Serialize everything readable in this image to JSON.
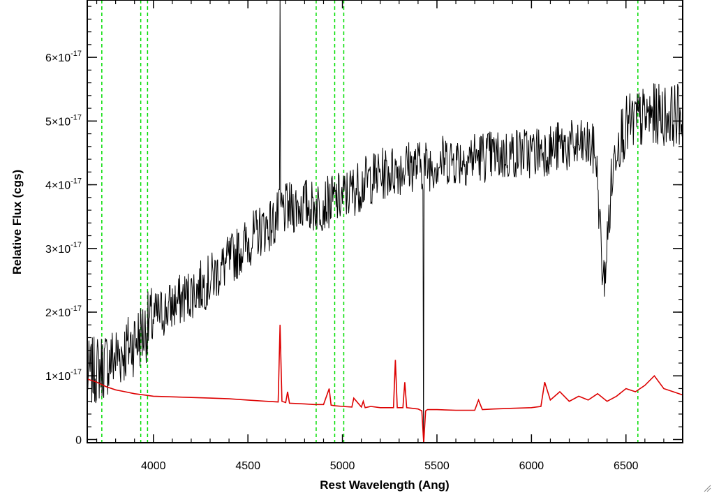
{
  "chart_data": {
    "type": "line",
    "title": "",
    "xlabel": "Rest Wavelength (Ang)",
    "ylabel": "Relative Flux (cgs)",
    "xlim": [
      3650,
      6800
    ],
    "ylim": [
      -5e-19,
      6.9e-17
    ],
    "xticks": [
      {
        "value": 4000,
        "label": "4000"
      },
      {
        "value": 4500,
        "label": "4500"
      },
      {
        "value": 5000,
        "label": "5000"
      },
      {
        "value": 5500,
        "label": "5500"
      },
      {
        "value": 6000,
        "label": "6000"
      },
      {
        "value": 6500,
        "label": "6500"
      }
    ],
    "yticks": [
      {
        "value": 0,
        "mantissa": "0",
        "exponent": ""
      },
      {
        "value": 1e-17,
        "mantissa": "1×10",
        "exponent": "-17"
      },
      {
        "value": 2e-17,
        "mantissa": "2×10",
        "exponent": "-17"
      },
      {
        "value": 3e-17,
        "mantissa": "3×10",
        "exponent": "-17"
      },
      {
        "value": 4e-17,
        "mantissa": "4×10",
        "exponent": "-17"
      },
      {
        "value": 5e-17,
        "mantissa": "5×10",
        "exponent": "-17"
      },
      {
        "value": 6e-17,
        "mantissa": "6×10",
        "exponent": "-17"
      }
    ],
    "grid": false,
    "vertical_markers": [
      3727,
      3933,
      3969,
      4861,
      4959,
      5007,
      6563
    ],
    "colors": {
      "observed": "#000000",
      "model": "#dd0000",
      "markers": "#00dd00"
    },
    "series": [
      {
        "key": "observed",
        "x": [
          3650,
          3700,
          3750,
          3800,
          3850,
          3900,
          3950,
          4000,
          4050,
          4100,
          4150,
          4200,
          4250,
          4300,
          4350,
          4400,
          4450,
          4500,
          4550,
          4600,
          4640,
          4660,
          4680,
          4700,
          4750,
          4800,
          4850,
          4900,
          4950,
          5000,
          5050,
          5100,
          5150,
          5200,
          5250,
          5300,
          5350,
          5400,
          5450,
          5500,
          5550,
          5600,
          5650,
          5700,
          5750,
          5800,
          5850,
          5900,
          5950,
          6000,
          6050,
          6100,
          6150,
          6200,
          6250,
          6300,
          6340,
          6360,
          6380,
          6400,
          6420,
          6450,
          6500,
          6550,
          6600,
          6650,
          6700,
          6750,
          6800
        ],
        "y": [
          1e-17,
          1.1e-17,
          1.2e-17,
          1.3e-17,
          1.4e-17,
          1.55e-17,
          1.7e-17,
          1.9e-17,
          2e-17,
          2.1e-17,
          2.2e-17,
          2.3e-17,
          2.4e-17,
          2.5e-17,
          2.65e-17,
          2.8e-17,
          2.95e-17,
          3.1e-17,
          3.25e-17,
          3.35e-17,
          3.4e-17,
          3.5e-17,
          3.6e-17,
          3.6e-17,
          3.65e-17,
          3.7e-17,
          3.65e-17,
          3.7e-17,
          3.75e-17,
          3.8e-17,
          3.9e-17,
          4e-17,
          4.1e-17,
          4.15e-17,
          4.2e-17,
          4.25e-17,
          4.3e-17,
          4.3e-17,
          4.3e-17,
          4.35e-17,
          4.4e-17,
          4.4e-17,
          4.4e-17,
          4.45e-17,
          4.45e-17,
          4.45e-17,
          4.45e-17,
          4.5e-17,
          4.5e-17,
          4.5e-17,
          4.55e-17,
          4.55e-17,
          4.6e-17,
          4.6e-17,
          4.6e-17,
          4.6e-17,
          4.5e-17,
          3.5e-17,
          2.4e-17,
          3e-17,
          3.9e-17,
          4.7e-17,
          4.9e-17,
          5e-17,
          5.05e-17,
          5.1e-17,
          5.1e-17,
          5.1e-17,
          5.1e-17
        ]
      },
      {
        "key": "model",
        "x": [
          3650,
          3700,
          3750,
          3800,
          3850,
          3900,
          3950,
          4000,
          4100,
          4200,
          4300,
          4400,
          4500,
          4600,
          4660,
          4670,
          4680,
          4700,
          4710,
          4720,
          4800,
          4850,
          4900,
          4930,
          4940,
          4960,
          5000,
          5050,
          5060,
          5100,
          5110,
          5120,
          5150,
          5200,
          5250,
          5270,
          5280,
          5290,
          5320,
          5330,
          5340,
          5400,
          5420,
          5430,
          5440,
          5450,
          5500,
          5600,
          5700,
          5720,
          5740,
          5800,
          5900,
          6000,
          6050,
          6070,
          6100,
          6150,
          6200,
          6250,
          6300,
          6350,
          6400,
          6450,
          6500,
          6550,
          6600,
          6650,
          6700,
          6750,
          6800
        ],
        "y": [
          9.5e-18,
          9e-18,
          8.3e-18,
          7.8e-18,
          7.5e-18,
          7.2e-18,
          7e-18,
          6.8e-18,
          6.7e-18,
          6.6e-18,
          6.5e-18,
          6.4e-18,
          6.2e-18,
          6e-18,
          5.9e-18,
          1.8e-17,
          6e-18,
          5.8e-18,
          7.5e-18,
          5.7e-18,
          5.6e-18,
          5.5e-18,
          5.5e-18,
          8e-18,
          5.4e-18,
          5.3e-18,
          5.2e-18,
          5.1e-18,
          6.5e-18,
          5.1e-18,
          6e-18,
          5e-18,
          5.2e-18,
          5e-18,
          5e-18,
          5e-18,
          1.25e-17,
          5e-18,
          5e-18,
          9e-18,
          5e-18,
          4.8e-18,
          4.5e-18,
          -5e-19,
          4.5e-18,
          4.7e-18,
          4.7e-18,
          4.6e-18,
          4.6e-18,
          6.2e-18,
          4.7e-18,
          4.8e-18,
          4.9e-18,
          5e-18,
          5.2e-18,
          9e-18,
          6.2e-18,
          7.5e-18,
          6e-18,
          6.8e-18,
          6.2e-18,
          7.2e-18,
          6e-18,
          6.8e-18,
          8e-18,
          7.5e-18,
          8.5e-18,
          1e-17,
          8e-18,
          7.5e-18,
          7e-18
        ]
      }
    ]
  }
}
